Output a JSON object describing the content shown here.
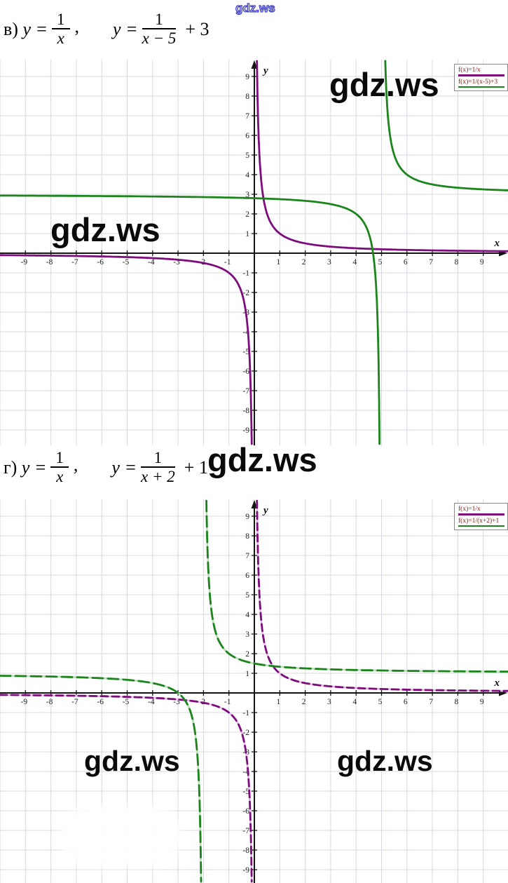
{
  "watermarks": [
    {
      "id": "top",
      "text": "gdz.ws"
    },
    {
      "id": "graph1-right",
      "text": "gdz.ws"
    },
    {
      "id": "graph1-left",
      "text": "gdz.ws"
    },
    {
      "id": "between-titles",
      "text": "gdz.ws"
    },
    {
      "id": "graph2-left",
      "text": "gdz.ws"
    },
    {
      "id": "graph2-right",
      "text": "gdz.ws"
    }
  ],
  "titles": [
    {
      "prefix": "в)",
      "eq1_lhs": "y =",
      "eq1_num": "1",
      "eq1_den": "x",
      "sep": ",",
      "eq2_lhs": "y =",
      "eq2_num": "1",
      "eq2_den": "x − 5",
      "eq2_suffix": "+ 3"
    },
    {
      "prefix": "г)",
      "eq1_lhs": "y =",
      "eq1_num": "1",
      "eq1_den": "x",
      "sep": ",",
      "eq2_lhs": "y =",
      "eq2_num": "1",
      "eq2_den": "x + 2",
      "eq2_suffix": "+ 1"
    }
  ],
  "chart_data": [
    {
      "type": "line",
      "title": "в) y = 1/x,  y = 1/(x−5) + 3",
      "xlabel": "x",
      "ylabel": "y",
      "xlim": [
        -10,
        10
      ],
      "ylim": [
        -9.9,
        9.9
      ],
      "grid": true,
      "legend_position": "top-right",
      "x_ticks": [
        -9,
        -8,
        -7,
        -6,
        -5,
        -4,
        -3,
        -2,
        -1,
        1,
        2,
        3,
        4,
        5,
        6,
        7,
        8,
        9
      ],
      "y_ticks": [
        -9,
        -8,
        -7,
        -6,
        -5,
        -4,
        -3,
        -2,
        -1,
        1,
        2,
        3,
        4,
        5,
        6,
        7,
        8,
        9
      ],
      "functions": [
        {
          "label": "f(x)=1/x",
          "formula": "y = 1/x",
          "h": 0,
          "k": 0,
          "vertical_asymptote": 0,
          "horizontal_asymptote": 0,
          "color": "#7d0c7d",
          "underlay": "#e2c0e2"
        },
        {
          "label": "f(x)=1/(x-5)+3",
          "formula": "y = 1/(x−5) + 3",
          "h": 5,
          "k": 3,
          "vertical_asymptote": 5,
          "horizontal_asymptote": 3,
          "color": "#1b851b",
          "underlay": "#bfe0bf"
        }
      ]
    },
    {
      "type": "line",
      "title": "г) y = 1/x,  y = 1/(x+2) + 1",
      "xlabel": "x",
      "ylabel": "y",
      "xlim": [
        -10,
        10
      ],
      "ylim": [
        -9.7,
        9.9
      ],
      "grid": true,
      "legend_position": "top-right",
      "x_ticks": [
        -9,
        -8,
        -7,
        -6,
        -5,
        -4,
        -3,
        -2,
        -1,
        1,
        2,
        3,
        4,
        5,
        6,
        7,
        8,
        9
      ],
      "y_ticks": [
        -9,
        -8,
        -7,
        -6,
        -5,
        -4,
        -3,
        -2,
        -1,
        1,
        2,
        3,
        4,
        5,
        6,
        7,
        8,
        9
      ],
      "functions": [
        {
          "label": "f(x)=1/x",
          "formula": "y = 1/x",
          "h": 0,
          "k": 0,
          "vertical_asymptote": 0,
          "horizontal_asymptote": 0,
          "color": "#7d0c7d",
          "underlay": "#e2c0e2"
        },
        {
          "label": "f(x)=1/(x+2)+1",
          "formula": "y = 1/(x+2) + 1",
          "h": -2,
          "k": 1,
          "vertical_asymptote": -2,
          "horizontal_asymptote": 1,
          "color": "#1b851b",
          "underlay": "#bfe0bf"
        }
      ]
    }
  ]
}
